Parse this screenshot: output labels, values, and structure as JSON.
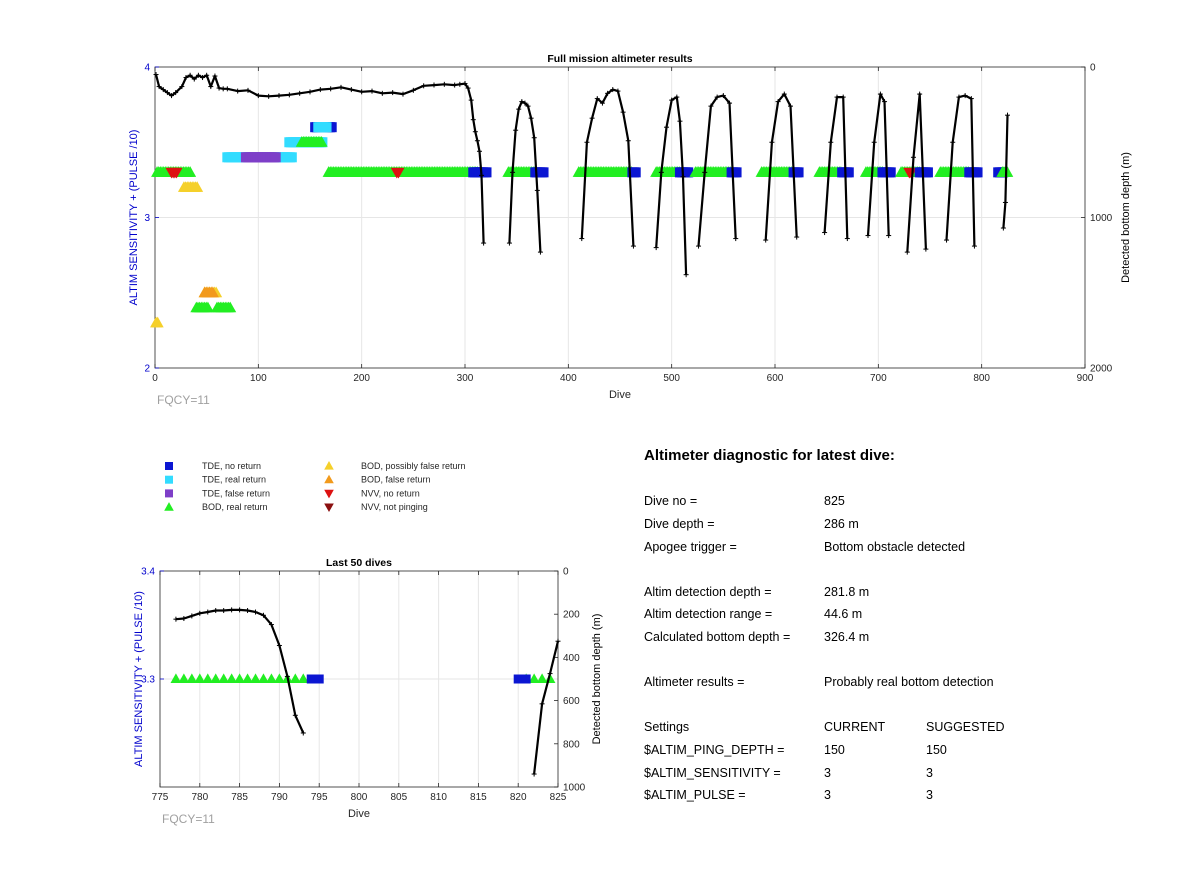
{
  "colors": {
    "tde_no_return": "#0b16d2",
    "tde_real_return": "#32dcff",
    "tde_false_return": "#7e3fc8",
    "bod_real_return": "#22ee22",
    "bod_possibly_false": "#f5d02a",
    "bod_false_return": "#f29a1c",
    "nvv_no_return": "#dd1111",
    "nvv_not_pinging": "#8b1010",
    "depth_line": "#000000",
    "axis_left": "#0000cc",
    "fqcy_text": "#a0a0a0"
  },
  "legend": {
    "items": [
      {
        "label": "TDE, no return",
        "marker": "square",
        "color_key": "tde_no_return"
      },
      {
        "label": "TDE, real return",
        "marker": "square",
        "color_key": "tde_real_return"
      },
      {
        "label": "TDE, false return",
        "marker": "square",
        "color_key": "tde_false_return"
      },
      {
        "label": "BOD, real return",
        "marker": "triangle-up",
        "color_key": "bod_real_return"
      },
      {
        "label": "BOD, possibly false return",
        "marker": "triangle-up",
        "color_key": "bod_possibly_false"
      },
      {
        "label": "BOD, false return",
        "marker": "triangle-up",
        "color_key": "bod_false_return"
      },
      {
        "label": "NVV, no return",
        "marker": "triangle-down",
        "color_key": "nvv_no_return"
      },
      {
        "label": "NVV, not pinging",
        "marker": "triangle-down",
        "color_key": "nvv_not_pinging"
      }
    ]
  },
  "diagnostic": {
    "title": "Altimeter diagnostic for latest dive:",
    "dive_no_label": "Dive no =",
    "dive_no": "825",
    "dive_depth_label": "Dive depth =",
    "dive_depth": "286 m",
    "apogee_label": "Apogee trigger =",
    "apogee": "Bottom obstacle detected",
    "altim_det_depth_label": "Altim detection depth =",
    "altim_det_depth": "281.8 m",
    "altim_det_range_label": "Altim detection range =",
    "altim_det_range": "44.6 m",
    "calc_bottom_label": "Calculated bottom depth =",
    "calc_bottom": "326.4 m",
    "results_label": "Altimeter results =",
    "results": "Probably real bottom detection",
    "settings_label": "Settings",
    "current_label": "CURRENT",
    "suggested_label": "SUGGESTED",
    "ping_depth_label": "$ALTIM_PING_DEPTH =",
    "ping_depth_current": "150",
    "ping_depth_suggested": "150",
    "sensitivity_label": "$ALTIM_SENSITIVITY =",
    "sensitivity_current": "3",
    "sensitivity_suggested": "3",
    "pulse_label": "$ALTIM_PULSE =",
    "pulse_current": "3",
    "pulse_suggested": "3"
  },
  "chart_data": [
    {
      "type": "scatter",
      "title": "Full mission altimeter results",
      "xlabel": "Dive",
      "ylabel": "ALTIM SENSITIVITY + (PULSE /10)",
      "y2label": "Detected bottom depth (m)",
      "annotation": "FQCY=11",
      "xlim": [
        0,
        900
      ],
      "ylim": [
        2,
        4
      ],
      "y2lim": [
        0,
        2000
      ],
      "y2_reversed": true,
      "x_ticks": [
        0,
        100,
        200,
        300,
        400,
        500,
        600,
        700,
        800,
        900
      ],
      "y_ticks": [
        2,
        3,
        4
      ],
      "y2_ticks": [
        0,
        1000,
        2000
      ],
      "grid": true,
      "altim_setting_runs": [
        {
          "kind": "bod_real_return",
          "x_start": 2,
          "x_end": 35,
          "y": 3.3
        },
        {
          "kind": "nvv_no_return",
          "x_start": 16,
          "x_end": 22,
          "y": 3.3
        },
        {
          "kind": "bod_possibly_false",
          "x_start": 28,
          "x_end": 42,
          "y": 3.2
        },
        {
          "kind": "bod_possibly_false",
          "x_start": 1,
          "x_end": 4,
          "y": 2.3
        },
        {
          "kind": "bod_real_return",
          "x_start": 40,
          "x_end": 52,
          "y": 2.4
        },
        {
          "kind": "bod_possibly_false",
          "x_start": 48,
          "x_end": 60,
          "y": 2.5
        },
        {
          "kind": "bod_false_return",
          "x_start": 48,
          "x_end": 56,
          "y": 2.5
        },
        {
          "kind": "bod_real_return",
          "x_start": 60,
          "x_end": 73,
          "y": 2.4
        },
        {
          "kind": "tde_real_return",
          "x_start": 70,
          "x_end": 133,
          "y": 3.4
        },
        {
          "kind": "tde_false_return",
          "x_start": 88,
          "x_end": 118,
          "y": 3.4
        },
        {
          "kind": "tde_real_return",
          "x_start": 130,
          "x_end": 162,
          "y": 3.5
        },
        {
          "kind": "bod_real_return",
          "x_start": 142,
          "x_end": 162,
          "y": 3.5
        },
        {
          "kind": "tde_no_return",
          "x_start": 155,
          "x_end": 172,
          "y": 3.6
        },
        {
          "kind": "tde_real_return",
          "x_start": 158,
          "x_end": 166,
          "y": 3.6
        },
        {
          "kind": "bod_real_return",
          "x_start": 168,
          "x_end": 312,
          "y": 3.3
        },
        {
          "kind": "nvv_no_return",
          "x_start": 234,
          "x_end": 236,
          "y": 3.3
        },
        {
          "kind": "tde_no_return",
          "x_start": 308,
          "x_end": 322,
          "y": 3.3
        },
        {
          "kind": "bod_real_return",
          "x_start": 342,
          "x_end": 368,
          "y": 3.3
        },
        {
          "kind": "tde_no_return",
          "x_start": 368,
          "x_end": 376,
          "y": 3.3
        },
        {
          "kind": "bod_real_return",
          "x_start": 410,
          "x_end": 462,
          "y": 3.3
        },
        {
          "kind": "tde_no_return",
          "x_start": 462,
          "x_end": 466,
          "y": 3.3
        },
        {
          "kind": "bod_real_return",
          "x_start": 485,
          "x_end": 508,
          "y": 3.3
        },
        {
          "kind": "tde_no_return",
          "x_start": 508,
          "x_end": 516,
          "y": 3.3
        },
        {
          "kind": "bod_real_return",
          "x_start": 523,
          "x_end": 558,
          "y": 3.3
        },
        {
          "kind": "tde_no_return",
          "x_start": 558,
          "x_end": 563,
          "y": 3.3
        },
        {
          "kind": "bod_real_return",
          "x_start": 587,
          "x_end": 618,
          "y": 3.3
        },
        {
          "kind": "tde_no_return",
          "x_start": 618,
          "x_end": 624,
          "y": 3.3
        },
        {
          "kind": "bod_real_return",
          "x_start": 643,
          "x_end": 665,
          "y": 3.3
        },
        {
          "kind": "tde_no_return",
          "x_start": 665,
          "x_end": 672,
          "y": 3.3
        },
        {
          "kind": "bod_real_return",
          "x_start": 688,
          "x_end": 704,
          "y": 3.3
        },
        {
          "kind": "tde_no_return",
          "x_start": 704,
          "x_end": 712,
          "y": 3.3
        },
        {
          "kind": "bod_real_return",
          "x_start": 722,
          "x_end": 740,
          "y": 3.3
        },
        {
          "kind": "nvv_no_return",
          "x_start": 730,
          "x_end": 732,
          "y": 3.3
        },
        {
          "kind": "tde_no_return",
          "x_start": 740,
          "x_end": 748,
          "y": 3.3
        },
        {
          "kind": "bod_real_return",
          "x_start": 760,
          "x_end": 788,
          "y": 3.3
        },
        {
          "kind": "tde_no_return",
          "x_start": 788,
          "x_end": 796,
          "y": 3.3
        },
        {
          "kind": "tde_no_return",
          "x_start": 816,
          "x_end": 822,
          "y": 3.3
        },
        {
          "kind": "bod_real_return",
          "x_start": 820,
          "x_end": 826,
          "y": 3.3
        }
      ],
      "depth_series": [
        {
          "name": "",
          "x": [
            1,
            4,
            8,
            12,
            16,
            20,
            26,
            30,
            34,
            38,
            42,
            46,
            50,
            54,
            58,
            62,
            66,
            70,
            80,
            90,
            100,
            110,
            120,
            130,
            140,
            150,
            160,
            170,
            180,
            190,
            200,
            210,
            220,
            230,
            240,
            250,
            260,
            270,
            280,
            290,
            295,
            300,
            303,
            306,
            308,
            310,
            312,
            314,
            316,
            318
          ],
          "y": [
            50,
            130,
            150,
            170,
            190,
            170,
            130,
            70,
            55,
            80,
            55,
            70,
            55,
            130,
            60,
            140,
            145,
            145,
            160,
            155,
            190,
            195,
            190,
            185,
            175,
            165,
            150,
            145,
            135,
            150,
            165,
            160,
            175,
            170,
            180,
            155,
            125,
            120,
            115,
            120,
            115,
            110,
            140,
            220,
            350,
            430,
            490,
            560,
            720,
            1170
          ]
        },
        {
          "name": "",
          "x": [
            343,
            346,
            349,
            352,
            355,
            358,
            361,
            364,
            367,
            370,
            373
          ],
          "y": [
            1170,
            700,
            420,
            280,
            230,
            240,
            260,
            340,
            470,
            820,
            1230
          ]
        },
        {
          "name": "",
          "x": [
            413,
            418,
            423,
            428,
            433,
            438,
            443,
            448,
            453,
            458,
            463
          ],
          "y": [
            1140,
            500,
            340,
            210,
            240,
            175,
            150,
            160,
            300,
            490,
            1190
          ]
        },
        {
          "name": "",
          "x": [
            485,
            490,
            495,
            500,
            505,
            508,
            511,
            514
          ],
          "y": [
            1200,
            700,
            400,
            220,
            200,
            360,
            730,
            1380
          ]
        },
        {
          "name": "",
          "x": [
            526,
            532,
            538,
            544,
            550,
            556,
            562
          ],
          "y": [
            1190,
            700,
            260,
            200,
            190,
            240,
            1140
          ]
        },
        {
          "name": "",
          "x": [
            591,
            597,
            603,
            609,
            615,
            621
          ],
          "y": [
            1150,
            500,
            230,
            180,
            260,
            1130
          ]
        },
        {
          "name": "",
          "x": [
            648,
            654,
            660,
            666,
            670
          ],
          "y": [
            1100,
            500,
            200,
            200,
            1140
          ]
        },
        {
          "name": "",
          "x": [
            690,
            696,
            702,
            706,
            710
          ],
          "y": [
            1120,
            500,
            180,
            230,
            1120
          ]
        },
        {
          "name": "",
          "x": [
            728,
            734,
            740,
            746
          ],
          "y": [
            1230,
            600,
            180,
            1210
          ]
        },
        {
          "name": "",
          "x": [
            766,
            772,
            778,
            784,
            790,
            793
          ],
          "y": [
            1150,
            500,
            200,
            190,
            210,
            1190
          ]
        },
        {
          "name": "",
          "x": [
            821,
            823,
            825
          ],
          "y": [
            1070,
            900,
            320
          ]
        }
      ]
    },
    {
      "type": "scatter",
      "title": "Last 50 dives",
      "xlabel": "Dive",
      "ylabel": "ALTIM SENSITIVITY + (PULSE /10)",
      "y2label": "Detected bottom depth (m)",
      "annotation": "FQCY=11",
      "xlim": [
        775,
        825
      ],
      "ylim": [
        3.2,
        3.4
      ],
      "y2lim": [
        0,
        1000
      ],
      "y2_reversed": true,
      "x_ticks": [
        775,
        780,
        785,
        790,
        795,
        800,
        805,
        810,
        815,
        820,
        825
      ],
      "y_ticks": [
        3.3,
        3.4
      ],
      "y2_ticks": [
        0,
        200,
        400,
        600,
        800,
        1000
      ],
      "grid": true,
      "points": [
        {
          "kind": "bod_real_return",
          "x": [
            777,
            778,
            779,
            780,
            781,
            782,
            783,
            784,
            785,
            786,
            787,
            788,
            789,
            790,
            791,
            792,
            793,
            821,
            822,
            823,
            824
          ],
          "y": 3.3
        },
        {
          "kind": "tde_no_return",
          "x": [
            794,
            795,
            820,
            821
          ],
          "y": 3.3
        }
      ],
      "depth_series": [
        {
          "name": "",
          "x": [
            777,
            778,
            779,
            780,
            781,
            782,
            783,
            784,
            785,
            786,
            787,
            788,
            789,
            790,
            791,
            792,
            793
          ],
          "y": [
            223,
            220,
            208,
            196,
            190,
            183,
            183,
            180,
            180,
            183,
            190,
            205,
            248,
            345,
            488,
            668,
            750
          ]
        },
        {
          "name": "",
          "x": [
            822,
            823,
            824,
            825
          ],
          "y": [
            940,
            615,
            475,
            325
          ]
        }
      ]
    }
  ]
}
